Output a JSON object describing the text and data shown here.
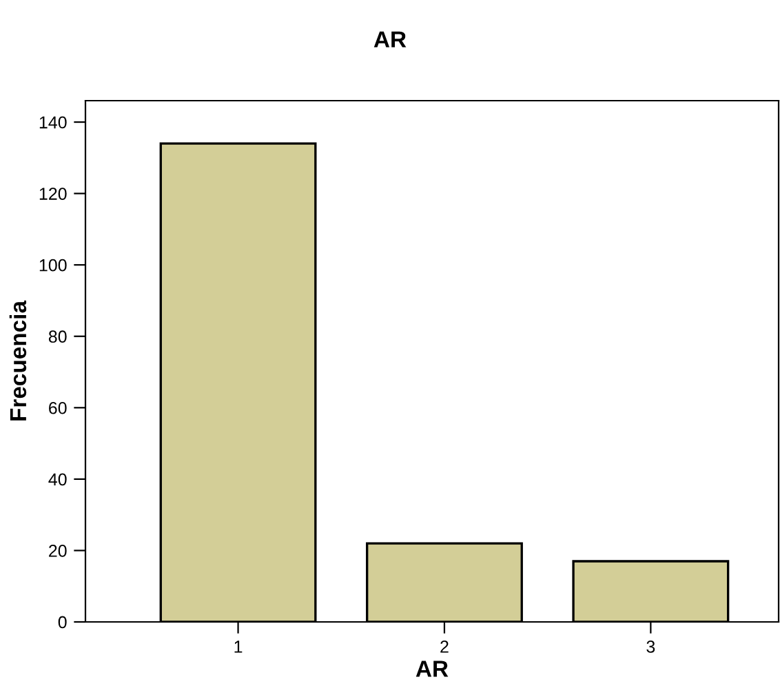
{
  "chart_data": {
    "type": "bar",
    "title": "AR",
    "xlabel": "AR",
    "ylabel": "Frecuencia",
    "categories": [
      "1",
      "2",
      "3"
    ],
    "values": [
      134,
      22,
      17
    ],
    "color": "#d3ce97",
    "ylim": [
      0,
      146
    ],
    "yticks": [
      0,
      20,
      40,
      60,
      80,
      100,
      120,
      140
    ],
    "grid": false,
    "legend": false
  }
}
